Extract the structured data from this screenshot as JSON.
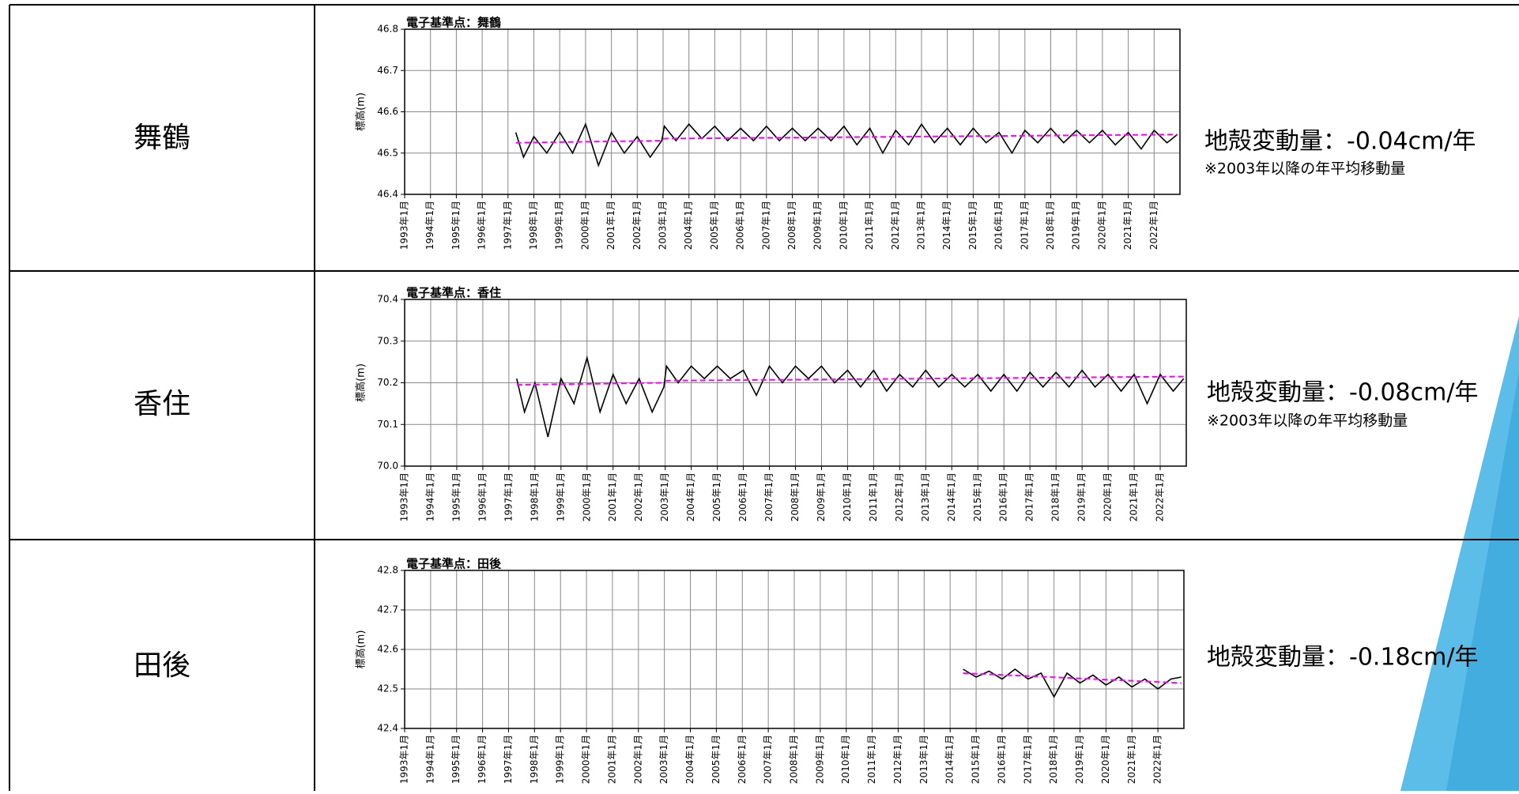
{
  "rows": [
    {
      "station": "舞鶴",
      "rate": "地殻変動量：-0.04cm/年",
      "note": "※2003年以降の年平均移動量"
    },
    {
      "station": "香住",
      "rate": "地殻変動量：-0.08cm/年",
      "note": "※2003年以降の年平均移動量"
    },
    {
      "station": "田後",
      "rate": "地殻変動量：-0.18cm/年"
    }
  ],
  "chart_data": [
    {
      "type": "line",
      "title": "電子基準点：舞鶴",
      "ylabel": "標高(m)",
      "grid": true,
      "xlim": [
        1993,
        2023
      ],
      "ylim": [
        46.4,
        46.8
      ],
      "yticks": [
        46.4,
        46.5,
        46.6,
        46.7,
        46.8
      ],
      "xticks": [
        {
          "value": 1993,
          "label": "1993年1月"
        },
        {
          "value": 1994,
          "label": "1994年1月"
        },
        {
          "value": 1995,
          "label": "1995年1月"
        },
        {
          "value": 1996,
          "label": "1996年1月"
        },
        {
          "value": 1997,
          "label": "1997年1月"
        },
        {
          "value": 1998,
          "label": "1998年1月"
        },
        {
          "value": 1999,
          "label": "1999年1月"
        },
        {
          "value": 2000,
          "label": "2000年1月"
        },
        {
          "value": 2001,
          "label": "2001年1月"
        },
        {
          "value": 2002,
          "label": "2002年1月"
        },
        {
          "value": 2003,
          "label": "2003年1月"
        },
        {
          "value": 2004,
          "label": "2004年1月"
        },
        {
          "value": 2005,
          "label": "2005年1月"
        },
        {
          "value": 2006,
          "label": "2006年1月"
        },
        {
          "value": 2007,
          "label": "2007年1月"
        },
        {
          "value": 2008,
          "label": "2008年1月"
        },
        {
          "value": 2009,
          "label": "2009年1月"
        },
        {
          "value": 2010,
          "label": "2010年1月"
        },
        {
          "value": 2011,
          "label": "2011年1月"
        },
        {
          "value": 2012,
          "label": "2012年1月"
        },
        {
          "value": 2013,
          "label": "2013年1月"
        },
        {
          "value": 2014,
          "label": "2014年1月"
        },
        {
          "value": 2015,
          "label": "2015年1月"
        },
        {
          "value": 2016,
          "label": "2016年1月"
        },
        {
          "value": 2017,
          "label": "2017年1月"
        },
        {
          "value": 2018,
          "label": "2018年1月"
        },
        {
          "value": 2019,
          "label": "2019年1月"
        },
        {
          "value": 2020,
          "label": "2020年1月"
        },
        {
          "value": 2021,
          "label": "2021年1月"
        },
        {
          "value": 2022,
          "label": "2022年1月"
        }
      ],
      "series": [
        {
          "color": "#000000",
          "x": [
            1997.3,
            1997.6,
            1998.0,
            1998.5,
            1999.0,
            1999.5,
            2000.0,
            2000.5,
            2001.0,
            2001.5,
            2002.0,
            2002.5,
            2002.95,
            2003.05,
            2003.5,
            2004.0,
            2004.5,
            2005.0,
            2005.5,
            2006.0,
            2006.5,
            2007.0,
            2007.5,
            2008.0,
            2008.5,
            2009.0,
            2009.5,
            2010.0,
            2010.5,
            2011.0,
            2011.5,
            2012.0,
            2012.5,
            2013.0,
            2013.5,
            2014.0,
            2014.5,
            2015.0,
            2015.5,
            2016.0,
            2016.5,
            2017.0,
            2017.5,
            2018.0,
            2018.5,
            2019.0,
            2019.5,
            2020.0,
            2020.5,
            2021.0,
            2021.5,
            2022.0,
            2022.5,
            2022.9
          ],
          "values": [
            46.55,
            46.49,
            46.54,
            46.5,
            46.55,
            46.5,
            46.57,
            46.47,
            46.55,
            46.5,
            46.54,
            46.49,
            46.53,
            46.565,
            46.53,
            46.57,
            46.535,
            46.565,
            46.53,
            46.56,
            46.53,
            46.565,
            46.53,
            46.56,
            46.53,
            46.56,
            46.53,
            46.565,
            46.52,
            46.56,
            46.5,
            46.555,
            46.52,
            46.57,
            46.525,
            46.56,
            46.52,
            46.56,
            46.525,
            46.55,
            46.5,
            46.555,
            46.525,
            46.56,
            46.525,
            46.555,
            46.525,
            46.555,
            46.52,
            46.55,
            46.51,
            46.555,
            46.525,
            46.545
          ]
        },
        {
          "color": "#ff00ff",
          "style": "dashed",
          "x": [
            1997.3,
            2002.9,
            2002.95,
            2003.0,
            2022.9
          ],
          "values": [
            46.525,
            46.53,
            null,
            46.535,
            46.545
          ]
        }
      ]
    },
    {
      "type": "line",
      "title": "電子基準点：香住",
      "ylabel": "標高(m)",
      "grid": true,
      "xlim": [
        1993,
        2023
      ],
      "ylim": [
        70.0,
        70.4
      ],
      "yticks": [
        {
          "value": 70,
          "label": "70.0"
        },
        70.1,
        70.2,
        70.3,
        70.4
      ],
      "xticks": [
        {
          "value": 1993,
          "label": "1993年1月"
        },
        {
          "value": 1994,
          "label": "1994年1月"
        },
        {
          "value": 1995,
          "label": "1995年1月"
        },
        {
          "value": 1996,
          "label": "1996年1月"
        },
        {
          "value": 1997,
          "label": "1997年1月"
        },
        {
          "value": 1998,
          "label": "1998年1月"
        },
        {
          "value": 1999,
          "label": "1999年1月"
        },
        {
          "value": 2000,
          "label": "2000年1月"
        },
        {
          "value": 2001,
          "label": "2001年1月"
        },
        {
          "value": 2002,
          "label": "2002年1月"
        },
        {
          "value": 2003,
          "label": "2003年1月"
        },
        {
          "value": 2004,
          "label": "2004年1月"
        },
        {
          "value": 2005,
          "label": "2005年1月"
        },
        {
          "value": 2006,
          "label": "2006年1月"
        },
        {
          "value": 2007,
          "label": "2007年1月"
        },
        {
          "value": 2008,
          "label": "2008年1月"
        },
        {
          "value": 2009,
          "label": "2009年1月"
        },
        {
          "value": 2010,
          "label": "2010年1月"
        },
        {
          "value": 2011,
          "label": "2011年1月"
        },
        {
          "value": 2012,
          "label": "2012年1月"
        },
        {
          "value": 2013,
          "label": "2013年1月"
        },
        {
          "value": 2014,
          "label": "2014年1月"
        },
        {
          "value": 2015,
          "label": "2015年1月"
        },
        {
          "value": 2016,
          "label": "2016年1月"
        },
        {
          "value": 2017,
          "label": "2017年1月"
        },
        {
          "value": 2018,
          "label": "2018年1月"
        },
        {
          "value": 2019,
          "label": "2019年1月"
        },
        {
          "value": 2020,
          "label": "2020年1月"
        },
        {
          "value": 2021,
          "label": "2021年1月"
        },
        {
          "value": 2022,
          "label": "2022年1月"
        }
      ],
      "series": [
        {
          "color": "#000000",
          "x": [
            1997.3,
            1997.6,
            1998.0,
            1998.5,
            1999.0,
            1999.5,
            2000.0,
            2000.5,
            2001.0,
            2001.5,
            2002.0,
            2002.5,
            2002.95,
            2003.05,
            2003.5,
            2004.0,
            2004.5,
            2005.0,
            2005.5,
            2006.0,
            2006.5,
            2007.0,
            2007.5,
            2008.0,
            2008.5,
            2009.0,
            2009.5,
            2010.0,
            2010.5,
            2011.0,
            2011.5,
            2012.0,
            2012.5,
            2013.0,
            2013.5,
            2014.0,
            2014.5,
            2015.0,
            2015.5,
            2016.0,
            2016.5,
            2017.0,
            2017.5,
            2018.0,
            2018.5,
            2019.0,
            2019.5,
            2020.0,
            2020.5,
            2021.0,
            2021.5,
            2022.0,
            2022.5,
            2022.9
          ],
          "values": [
            70.21,
            70.13,
            70.2,
            70.07,
            70.21,
            70.15,
            70.26,
            70.13,
            70.22,
            70.15,
            70.21,
            70.13,
            70.19,
            70.24,
            70.2,
            70.24,
            70.21,
            70.24,
            70.21,
            70.23,
            70.17,
            70.24,
            70.2,
            70.24,
            70.21,
            70.24,
            70.2,
            70.23,
            70.19,
            70.23,
            70.18,
            70.22,
            70.19,
            70.23,
            70.19,
            70.22,
            70.19,
            70.22,
            70.18,
            70.22,
            70.18,
            70.225,
            70.19,
            70.225,
            70.19,
            70.23,
            70.19,
            70.22,
            70.18,
            70.22,
            70.15,
            70.22,
            70.18,
            70.21
          ]
        },
        {
          "color": "#ff00ff",
          "style": "dashed",
          "x": [
            1997.3,
            2002.9,
            2002.95,
            2003.0,
            2022.9
          ],
          "values": [
            70.195,
            70.2,
            null,
            70.205,
            70.215
          ]
        }
      ]
    },
    {
      "type": "line",
      "title": "電子基準点：田後",
      "ylabel": "標高(m)",
      "grid": true,
      "xlim": [
        1993,
        2023
      ],
      "ylim": [
        42.4,
        42.8
      ],
      "yticks": [
        42.4,
        42.5,
        42.6,
        42.7,
        42.8
      ],
      "xticks": [
        {
          "value": 1993,
          "label": "1993年1月"
        },
        {
          "value": 1994,
          "label": "1994年1月"
        },
        {
          "value": 1995,
          "label": "1995年1月"
        },
        {
          "value": 1996,
          "label": "1996年1月"
        },
        {
          "value": 1997,
          "label": "1997年1月"
        },
        {
          "value": 1998,
          "label": "1998年1月"
        },
        {
          "value": 1999,
          "label": "1999年1月"
        },
        {
          "value": 2000,
          "label": "2000年1月"
        },
        {
          "value": 2001,
          "label": "2001年1月"
        },
        {
          "value": 2002,
          "label": "2002年1月"
        },
        {
          "value": 2003,
          "label": "2003年1月"
        },
        {
          "value": 2004,
          "label": "2004年1月"
        },
        {
          "value": 2005,
          "label": "2005年1月"
        },
        {
          "value": 2006,
          "label": "2006年1月"
        },
        {
          "value": 2007,
          "label": "2007年1月"
        },
        {
          "value": 2008,
          "label": "2008年1月"
        },
        {
          "value": 2009,
          "label": "2009年1月"
        },
        {
          "value": 2010,
          "label": "2010年1月"
        },
        {
          "value": 2011,
          "label": "2011年1月"
        },
        {
          "value": 2012,
          "label": "2012年1月"
        },
        {
          "value": 2013,
          "label": "2013年1月"
        },
        {
          "value": 2014,
          "label": "2014年1月"
        },
        {
          "value": 2015,
          "label": "2015年1月"
        },
        {
          "value": 2016,
          "label": "2016年1月"
        },
        {
          "value": 2017,
          "label": "2017年1月"
        },
        {
          "value": 2018,
          "label": "2018年1月"
        },
        {
          "value": 2019,
          "label": "2019年1月"
        },
        {
          "value": 2020,
          "label": "2020年1月"
        },
        {
          "value": 2021,
          "label": "2021年1月"
        },
        {
          "value": 2022,
          "label": "2022年1月"
        }
      ],
      "series": [
        {
          "color": "#000000",
          "x": [
            2014.5,
            2015.0,
            2015.5,
            2016.0,
            2016.5,
            2017.0,
            2017.5,
            2018.0,
            2018.5,
            2019.0,
            2019.5,
            2020.0,
            2020.5,
            2021.0,
            2021.5,
            2022.0,
            2022.5,
            2022.9
          ],
          "values": [
            42.55,
            42.53,
            42.545,
            42.525,
            42.55,
            42.525,
            42.54,
            42.48,
            42.54,
            42.515,
            42.535,
            42.51,
            42.53,
            42.505,
            42.525,
            42.5,
            42.525,
            42.53
          ]
        },
        {
          "color": "#ff00ff",
          "style": "dashed",
          "x": [
            2014.5,
            2022.9
          ],
          "values": [
            42.54,
            42.515
          ]
        }
      ]
    }
  ]
}
